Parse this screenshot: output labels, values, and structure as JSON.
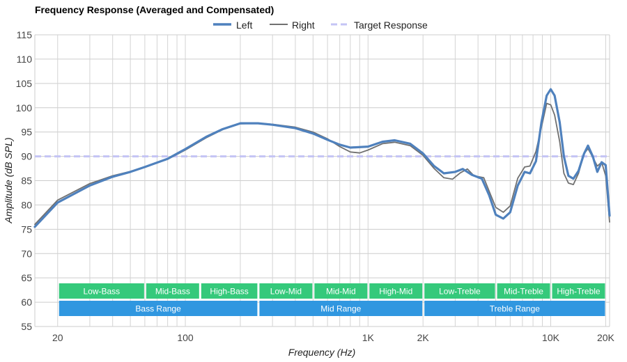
{
  "chart_data": {
    "type": "line",
    "title": "Frequency Response (Averaged and Compensated)",
    "xlabel": "Frequency (Hz)",
    "ylabel": "Amplitude (dB SPL)",
    "xscale": "log",
    "xlim": [
      15,
      21000
    ],
    "ylim": [
      55,
      115
    ],
    "yticks": [
      55,
      60,
      65,
      70,
      75,
      80,
      85,
      90,
      95,
      100,
      105,
      110,
      115
    ],
    "xticks": [
      {
        "value": 20,
        "label": "20"
      },
      {
        "value": 100,
        "label": "100"
      },
      {
        "value": 1000,
        "label": "1K"
      },
      {
        "value": 2000,
        "label": "2K"
      },
      {
        "value": 10000,
        "label": "10K"
      },
      {
        "value": 20000,
        "label": "20K"
      }
    ],
    "grid": true,
    "legend_position": "top-center",
    "series": [
      {
        "name": "Left",
        "color": "#4f81bd",
        "style": "solid-thick",
        "points": [
          [
            15,
            75.5
          ],
          [
            20,
            80.5
          ],
          [
            30,
            84
          ],
          [
            40,
            85.8
          ],
          [
            50,
            86.8
          ],
          [
            60,
            87.8
          ],
          [
            80,
            89.5
          ],
          [
            100,
            91.5
          ],
          [
            130,
            94
          ],
          [
            160,
            95.6
          ],
          [
            200,
            96.8
          ],
          [
            250,
            96.8
          ],
          [
            300,
            96.5
          ],
          [
            400,
            95.8
          ],
          [
            500,
            94.7
          ],
          [
            600,
            93.4
          ],
          [
            700,
            92.4
          ],
          [
            800,
            91.8
          ],
          [
            1000,
            92.0
          ],
          [
            1200,
            93.0
          ],
          [
            1400,
            93.3
          ],
          [
            1700,
            92.6
          ],
          [
            2000,
            90.6
          ],
          [
            2300,
            88.0
          ],
          [
            2600,
            86.5
          ],
          [
            3000,
            86.8
          ],
          [
            3300,
            87.4
          ],
          [
            3700,
            86.2
          ],
          [
            4200,
            85.4
          ],
          [
            4600,
            82.0
          ],
          [
            5000,
            78.0
          ],
          [
            5500,
            77.2
          ],
          [
            6000,
            78.5
          ],
          [
            6600,
            84.0
          ],
          [
            7200,
            86.8
          ],
          [
            7700,
            86.5
          ],
          [
            8300,
            89.0
          ],
          [
            8900,
            97.0
          ],
          [
            9500,
            102.5
          ],
          [
            10000,
            103.8
          ],
          [
            10500,
            102.5
          ],
          [
            11200,
            97.0
          ],
          [
            11800,
            90.0
          ],
          [
            12500,
            86.0
          ],
          [
            13300,
            85.4
          ],
          [
            14200,
            87.0
          ],
          [
            15200,
            90.5
          ],
          [
            16000,
            92.2
          ],
          [
            17000,
            90.0
          ],
          [
            18000,
            86.8
          ],
          [
            19000,
            88.8
          ],
          [
            20000,
            88.2
          ],
          [
            21000,
            77.8
          ]
        ]
      },
      {
        "name": "Right",
        "color": "#707070",
        "style": "solid-thin",
        "points": [
          [
            15,
            76.0
          ],
          [
            20,
            81.0
          ],
          [
            30,
            84.4
          ],
          [
            40,
            86.0
          ],
          [
            50,
            86.9
          ],
          [
            60,
            87.8
          ],
          [
            80,
            89.4
          ],
          [
            100,
            91.3
          ],
          [
            130,
            93.8
          ],
          [
            160,
            95.5
          ],
          [
            200,
            96.7
          ],
          [
            250,
            96.8
          ],
          [
            300,
            96.6
          ],
          [
            400,
            96.0
          ],
          [
            500,
            95.0
          ],
          [
            600,
            93.6
          ],
          [
            700,
            92.0
          ],
          [
            800,
            90.9
          ],
          [
            900,
            90.7
          ],
          [
            1000,
            91.3
          ],
          [
            1200,
            92.6
          ],
          [
            1400,
            92.9
          ],
          [
            1700,
            92.2
          ],
          [
            2000,
            90.2
          ],
          [
            2300,
            87.5
          ],
          [
            2600,
            85.6
          ],
          [
            2900,
            85.3
          ],
          [
            3200,
            86.6
          ],
          [
            3500,
            87.4
          ],
          [
            3800,
            86.0
          ],
          [
            4300,
            85.6
          ],
          [
            4700,
            82.0
          ],
          [
            5000,
            79.5
          ],
          [
            5500,
            78.5
          ],
          [
            6000,
            79.8
          ],
          [
            6600,
            85.5
          ],
          [
            7200,
            87.8
          ],
          [
            7700,
            88.0
          ],
          [
            8300,
            91.0
          ],
          [
            8900,
            96.0
          ],
          [
            9500,
            100.9
          ],
          [
            10000,
            100.6
          ],
          [
            10500,
            98.5
          ],
          [
            11200,
            93.0
          ],
          [
            11800,
            86.5
          ],
          [
            12500,
            84.5
          ],
          [
            13300,
            84.2
          ],
          [
            14200,
            86.5
          ],
          [
            15200,
            90.5
          ],
          [
            16000,
            91.6
          ],
          [
            17000,
            89.8
          ],
          [
            18000,
            88.0
          ],
          [
            19000,
            88.8
          ],
          [
            20000,
            86.0
          ],
          [
            21000,
            76.5
          ]
        ]
      },
      {
        "name": "Target Response",
        "color": "#c4c4f5",
        "style": "dashed",
        "points": [
          [
            15,
            90
          ],
          [
            21000,
            90
          ]
        ]
      }
    ],
    "bands": [
      {
        "label": "Low-Bass",
        "from": 20,
        "to": 60,
        "color": "#35c97b",
        "row": 1
      },
      {
        "label": "Mid-Bass",
        "from": 60,
        "to": 120,
        "color": "#35c97b",
        "row": 1
      },
      {
        "label": "High-Bass",
        "from": 120,
        "to": 250,
        "color": "#35c97b",
        "row": 1
      },
      {
        "label": "Low-Mid",
        "from": 250,
        "to": 500,
        "color": "#35c97b",
        "row": 1
      },
      {
        "label": "Mid-Mid",
        "from": 500,
        "to": 1000,
        "color": "#35c97b",
        "row": 1
      },
      {
        "label": "High-Mid",
        "from": 1000,
        "to": 2000,
        "color": "#35c97b",
        "row": 1
      },
      {
        "label": "Low-Treble",
        "from": 2000,
        "to": 5000,
        "color": "#35c97b",
        "row": 1
      },
      {
        "label": "Mid-Treble",
        "from": 5000,
        "to": 10000,
        "color": "#35c97b",
        "row": 1
      },
      {
        "label": "High-Treble",
        "from": 10000,
        "to": 20000,
        "color": "#35c97b",
        "row": 1
      },
      {
        "label": "Bass Range",
        "from": 20,
        "to": 250,
        "color": "#3097e0",
        "row": 2
      },
      {
        "label": "Mid Range",
        "from": 250,
        "to": 2000,
        "color": "#3097e0",
        "row": 2
      },
      {
        "label": "Treble Range",
        "from": 2000,
        "to": 20000,
        "color": "#3097e0",
        "row": 2
      }
    ]
  }
}
